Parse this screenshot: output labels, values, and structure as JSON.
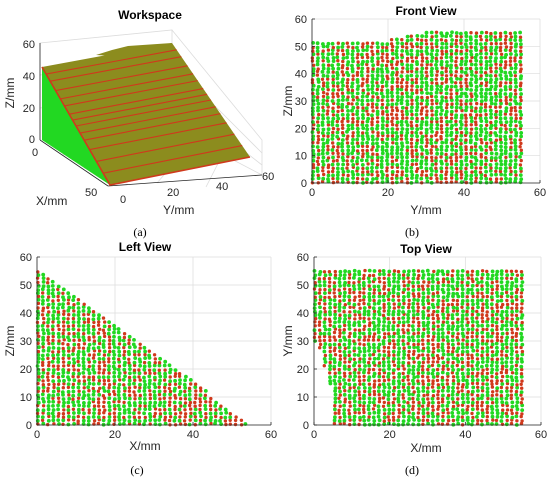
{
  "colors": {
    "green": "#22d822",
    "red": "#d0391c",
    "olive": "#8c8c1e",
    "grid": "#dcdcdc",
    "axis": "#262626"
  },
  "chart_data": [
    {
      "id": "workspace",
      "type": "scatter3d",
      "title": "Workspace",
      "caption": "(a)",
      "xlabel": "X/mm",
      "ylabel": "Y/mm",
      "zlabel": "Z/mm",
      "xticks": [
        "0",
        "50"
      ],
      "yticks": [
        "0",
        "20",
        "40",
        "60"
      ],
      "zticks": [
        "0",
        "20",
        "40",
        "60"
      ],
      "xlim": [
        0,
        55
      ],
      "ylim": [
        0,
        60
      ],
      "zlim": [
        0,
        60
      ],
      "surface": "inclined plane z = 55 - x (0 ≤ x ≤ 55, 0 ≤ y ≤ 55), points coloured green and red",
      "grid": true
    },
    {
      "id": "front",
      "type": "scatter",
      "title": "Front View",
      "caption": "(b)",
      "xlabel": "Y/mm",
      "ylabel": "Z/mm",
      "xticks": [
        "0",
        "20",
        "40",
        "60"
      ],
      "yticks": [
        "0",
        "10",
        "20",
        "30",
        "40",
        "50",
        "60"
      ],
      "xlim": [
        0,
        60
      ],
      "ylim": [
        0,
        60
      ],
      "region_outline": [
        [
          0,
          0
        ],
        [
          0,
          51
        ],
        [
          12,
          51
        ],
        [
          20,
          52
        ],
        [
          26,
          54
        ],
        [
          30,
          55
        ],
        [
          55,
          55
        ],
        [
          55,
          0
        ]
      ],
      "series": [
        {
          "marker_color": "green"
        },
        {
          "marker_color": "red"
        }
      ],
      "grid": true
    },
    {
      "id": "left",
      "type": "scatter",
      "title": "Left View",
      "caption": "(c)",
      "xlabel": "X/mm",
      "ylabel": "Z/mm",
      "xticks": [
        "0",
        "20",
        "40",
        "60"
      ],
      "yticks": [
        "0",
        "10",
        "20",
        "30",
        "40",
        "50",
        "60"
      ],
      "xlim": [
        0,
        60
      ],
      "ylim": [
        0,
        60
      ],
      "region_outline": [
        [
          0,
          0
        ],
        [
          0,
          56
        ],
        [
          55,
          0
        ]
      ],
      "series": [
        {
          "marker_color": "green"
        },
        {
          "marker_color": "red"
        }
      ],
      "grid": true
    },
    {
      "id": "top",
      "type": "scatter",
      "title": "Top View",
      "caption": "(d)",
      "xlabel": "X/mm",
      "ylabel": "Y/mm",
      "xticks": [
        "0",
        "20",
        "40",
        "60"
      ],
      "yticks": [
        "0",
        "10",
        "20",
        "30",
        "40",
        "50",
        "60"
      ],
      "xlim": [
        0,
        60
      ],
      "ylim": [
        0,
        60
      ],
      "region_outline": [
        [
          0,
          55
        ],
        [
          0,
          30
        ],
        [
          1,
          29
        ],
        [
          2,
          25
        ],
        [
          3,
          20
        ],
        [
          4,
          15
        ],
        [
          5,
          10
        ],
        [
          5,
          0
        ],
        [
          55,
          0
        ],
        [
          55,
          55
        ]
      ],
      "series": [
        {
          "marker_color": "green"
        },
        {
          "marker_color": "red"
        }
      ],
      "grid": true
    }
  ]
}
